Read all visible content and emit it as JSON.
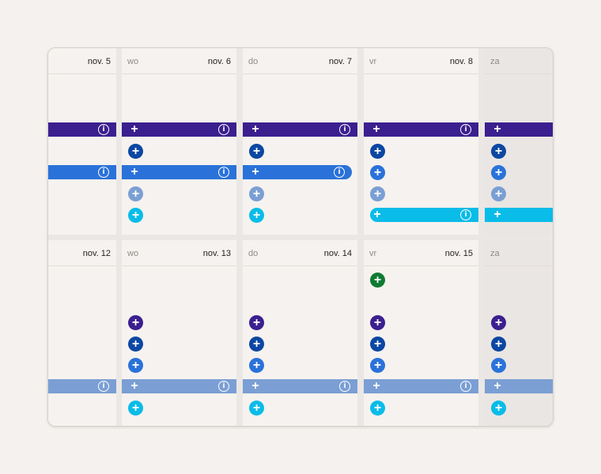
{
  "colors": {
    "purple": "#3b1f8f",
    "navy": "#0b47a3",
    "blue": "#2a72d9",
    "light_blue": "#7b9fd4",
    "cyan": "#0abce8",
    "green": "#0f7b33"
  },
  "icons": {
    "plus": "+",
    "info": "i",
    "plus_name": "plus-icon",
    "info_name": "info-icon"
  },
  "week1": {
    "days": [
      {
        "day": "",
        "date": "nov. 5"
      },
      {
        "day": "wo",
        "date": "nov. 6"
      },
      {
        "day": "do",
        "date": "nov. 7"
      },
      {
        "day": "vr",
        "date": "nov. 8"
      },
      {
        "day": "za",
        "date": ""
      }
    ]
  },
  "week2": {
    "days": [
      {
        "day": "",
        "date": "nov. 12"
      },
      {
        "day": "wo",
        "date": "nov. 13"
      },
      {
        "day": "do",
        "date": "nov. 14"
      },
      {
        "day": "vr",
        "date": "nov. 15"
      },
      {
        "day": "za",
        "date": ""
      }
    ]
  }
}
